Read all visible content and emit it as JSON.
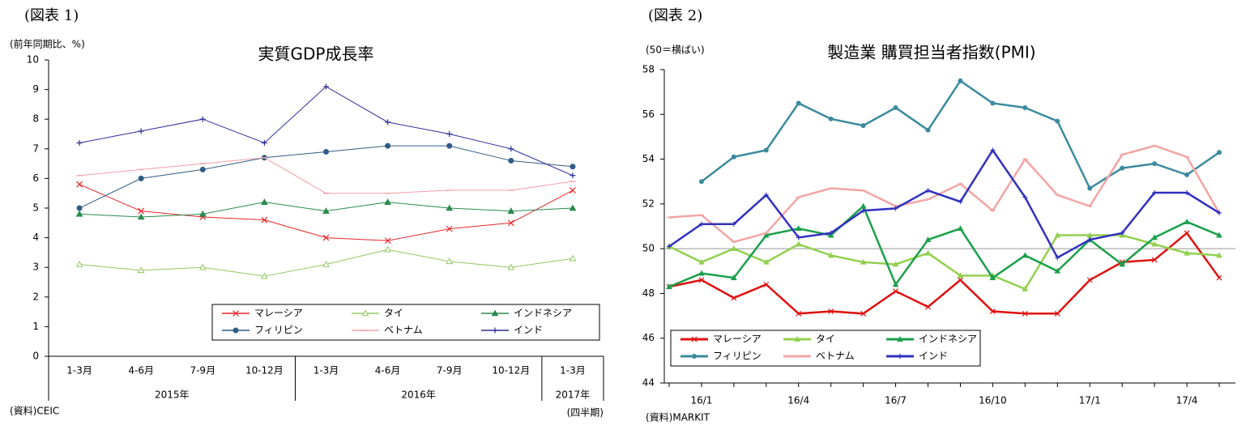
{
  "chart_data": [
    {
      "type": "line",
      "figure_label": "(図表 1)",
      "title": "実質GDP成長率",
      "ylabel": "(前年同期比、%)",
      "source": "(資料)CEIC",
      "x_unit": "(四半期)",
      "categories": [
        "1-3月",
        "4-6月",
        "7-9月",
        "10-12月",
        "1-3月",
        "4-6月",
        "7-9月",
        "10-12月",
        "1-3月"
      ],
      "category_groups": [
        {
          "label": "2015年",
          "count": 4
        },
        {
          "label": "2016年",
          "count": 4
        },
        {
          "label": "2017年",
          "count": 1
        }
      ],
      "ylim": [
        0,
        10
      ],
      "yticks": [
        0,
        1,
        2,
        3,
        4,
        5,
        6,
        7,
        8,
        9,
        10
      ],
      "legend": "lower right",
      "series": [
        {
          "name": "マレーシア",
          "color": "#e8262a",
          "marker": "x",
          "values": [
            5.8,
            4.9,
            4.7,
            4.6,
            4.0,
            3.9,
            4.3,
            4.5,
            5.6
          ]
        },
        {
          "name": "タイ",
          "color": "#93c760",
          "marker": "triangle-open",
          "values": [
            3.1,
            2.9,
            3.0,
            2.7,
            3.1,
            3.6,
            3.2,
            3.0,
            3.3
          ]
        },
        {
          "name": "インドネシア",
          "color": "#2a8a4c",
          "marker": "triangle",
          "values": [
            4.8,
            4.7,
            4.8,
            5.2,
            4.9,
            5.2,
            5.0,
            4.9,
            5.0
          ]
        },
        {
          "name": "フィリピン",
          "color": "#2f5b86",
          "marker": "circle",
          "values": [
            5.0,
            6.0,
            6.3,
            6.7,
            6.9,
            7.1,
            7.1,
            6.6,
            6.4
          ]
        },
        {
          "name": "ベトナム",
          "color": "#f2a0a8",
          "marker": "dash",
          "values": [
            6.1,
            6.3,
            6.5,
            6.7,
            5.5,
            5.5,
            5.6,
            5.6,
            5.9
          ]
        },
        {
          "name": "インド",
          "color": "#2d2d9a",
          "marker": "plus",
          "values": [
            7.2,
            7.6,
            8.0,
            7.2,
            9.1,
            7.9,
            7.5,
            7.0,
            6.1
          ]
        }
      ]
    },
    {
      "type": "line",
      "figure_label": "(図表 2)",
      "title": "製造業 購買担当者指数(PMI)",
      "ylabel": "(50＝横ばい)",
      "source": "(資料)MARKIT",
      "categories": [
        null,
        "16/1",
        null,
        null,
        "16/4",
        null,
        null,
        "16/7",
        null,
        null,
        "16/10",
        null,
        null,
        "17/1",
        null,
        null,
        "17/4",
        null
      ],
      "ylim": [
        44,
        58
      ],
      "yticks": [
        44,
        46,
        48,
        50,
        52,
        54,
        56,
        58
      ],
      "reference_line": 50,
      "legend": "lower left",
      "series": [
        {
          "name": "マレーシア",
          "color": "#e01010",
          "marker": "x",
          "values": [
            48.3,
            48.6,
            47.8,
            48.4,
            47.1,
            47.2,
            47.1,
            48.1,
            47.4,
            48.6,
            47.2,
            47.1,
            47.1,
            48.6,
            49.4,
            49.5,
            50.7,
            48.7
          ]
        },
        {
          "name": "タイ",
          "color": "#92d050",
          "marker": "triangle",
          "values": [
            50.1,
            49.4,
            50.0,
            49.4,
            50.2,
            49.7,
            49.4,
            49.3,
            49.8,
            48.8,
            48.8,
            48.2,
            50.6,
            50.6,
            50.6,
            50.2,
            49.8,
            49.7
          ]
        },
        {
          "name": "インドネシア",
          "color": "#1aa04a",
          "marker": "triangle",
          "values": [
            48.3,
            48.9,
            48.7,
            50.6,
            50.9,
            50.6,
            51.9,
            48.4,
            50.4,
            50.9,
            48.7,
            49.7,
            49.0,
            50.4,
            49.3,
            50.5,
            51.2,
            50.6
          ]
        },
        {
          "name": "フィリピン",
          "color": "#3a8a9e",
          "marker": "circle",
          "values": [
            null,
            53.0,
            54.1,
            54.4,
            56.5,
            55.8,
            55.5,
            56.3,
            55.3,
            57.5,
            56.5,
            56.3,
            55.7,
            52.7,
            53.6,
            53.8,
            53.3,
            54.3
          ]
        },
        {
          "name": "ベトナム",
          "color": "#f4a4a4",
          "marker": "dash",
          "values": [
            51.4,
            51.5,
            50.3,
            50.7,
            52.3,
            52.7,
            52.6,
            51.9,
            52.2,
            52.9,
            51.7,
            54.0,
            52.4,
            51.9,
            54.2,
            54.6,
            54.1,
            51.6
          ]
        },
        {
          "name": "インド",
          "color": "#3030c0",
          "marker": "plus",
          "values": [
            50.1,
            51.1,
            51.1,
            52.4,
            50.5,
            50.7,
            51.7,
            51.8,
            52.6,
            52.1,
            54.4,
            52.3,
            49.6,
            50.4,
            50.7,
            52.5,
            52.5,
            51.6
          ]
        }
      ]
    }
  ]
}
